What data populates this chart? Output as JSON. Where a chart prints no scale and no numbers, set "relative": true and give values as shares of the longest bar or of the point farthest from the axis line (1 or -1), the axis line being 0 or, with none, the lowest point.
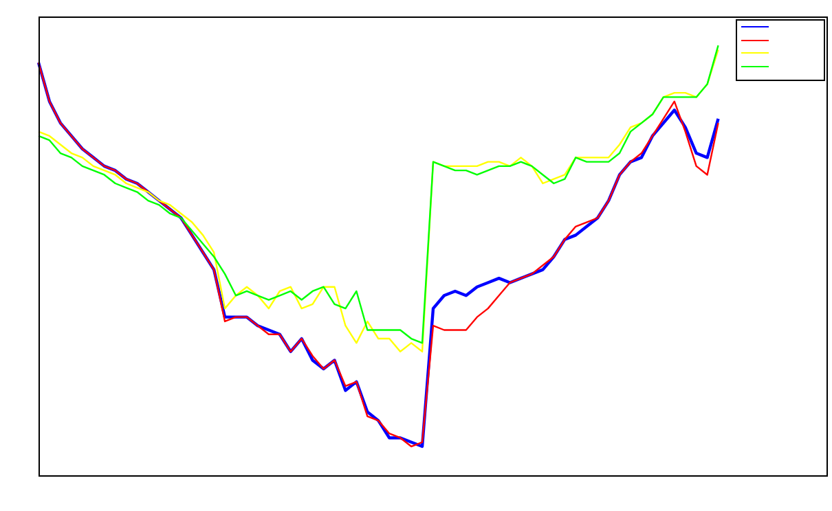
{
  "chart_data": {
    "type": "line",
    "relative": true,
    "marker": "none",
    "line_style": "solid",
    "categories": [
      null,
      null,
      null,
      null,
      null,
      null,
      null,
      null,
      null,
      null,
      null,
      null,
      null,
      null,
      null,
      null,
      null,
      null,
      null,
      null,
      null,
      null,
      null,
      null,
      null,
      null,
      null,
      null,
      null,
      null,
      null,
      null,
      null,
      null,
      null,
      null,
      null,
      null,
      null,
      null,
      null,
      null,
      null,
      null,
      null,
      null,
      null,
      null,
      null,
      null,
      null,
      null,
      null,
      null,
      null,
      null,
      null,
      null,
      null,
      null,
      null,
      null,
      null,
      null,
      null,
      null,
      null,
      null,
      null,
      null,
      null,
      null,
      null
    ],
    "series": [
      {
        "color": "#0000ff",
        "values": [
          0.96,
          0.87,
          0.82,
          0.79,
          0.76,
          0.74,
          0.72,
          0.71,
          0.69,
          0.68,
          0.66,
          0.64,
          0.62,
          0.6,
          0.56,
          0.52,
          0.48,
          0.37,
          0.37,
          0.37,
          0.35,
          0.34,
          0.33,
          0.29,
          0.32,
          0.27,
          0.25,
          0.27,
          0.2,
          0.22,
          0.15,
          0.13,
          0.09,
          0.09,
          0.08,
          0.07,
          0.39,
          0.42,
          0.43,
          0.42,
          0.44,
          0.45,
          0.46,
          0.45,
          0.46,
          0.47,
          0.48,
          0.51,
          0.55,
          0.56,
          0.58,
          0.6,
          0.64,
          0.7,
          0.73,
          0.74,
          0.79,
          0.82,
          0.85,
          0.81,
          0.75,
          0.74,
          0.83,
          null,
          null,
          null,
          null,
          null,
          null,
          null,
          null,
          null,
          null
        ]
      },
      {
        "color": "#ff0000",
        "values": [
          0.96,
          0.87,
          0.82,
          0.79,
          0.76,
          0.74,
          0.72,
          0.71,
          0.69,
          0.68,
          0.66,
          0.64,
          0.62,
          0.6,
          0.56,
          0.52,
          0.48,
          0.36,
          0.37,
          0.37,
          0.35,
          0.33,
          0.33,
          0.29,
          0.32,
          0.28,
          0.25,
          0.27,
          0.21,
          0.22,
          0.14,
          0.13,
          0.1,
          0.09,
          0.07,
          0.08,
          0.35,
          0.34,
          0.34,
          0.34,
          0.37,
          0.39,
          0.42,
          0.45,
          0.46,
          0.47,
          0.49,
          0.51,
          0.55,
          0.58,
          0.59,
          0.6,
          0.64,
          0.7,
          0.73,
          0.75,
          0.79,
          0.83,
          0.87,
          0.8,
          0.72,
          0.7,
          0.82,
          null,
          null,
          null,
          null,
          null,
          null,
          null,
          null,
          null,
          null
        ]
      },
      {
        "color": "#ffff00",
        "values": [
          0.8,
          0.79,
          0.77,
          0.75,
          0.74,
          0.72,
          0.71,
          0.7,
          0.68,
          0.67,
          0.66,
          0.64,
          0.63,
          0.61,
          0.59,
          0.56,
          0.52,
          0.39,
          0.42,
          0.44,
          0.42,
          0.39,
          0.43,
          0.44,
          0.39,
          0.4,
          0.44,
          0.44,
          0.35,
          0.31,
          0.36,
          0.32,
          0.32,
          0.29,
          0.31,
          0.29,
          0.73,
          0.72,
          0.72,
          0.72,
          0.72,
          0.73,
          0.73,
          0.72,
          0.74,
          0.72,
          0.68,
          0.69,
          0.7,
          0.74,
          0.74,
          0.74,
          0.74,
          0.77,
          0.81,
          0.82,
          0.84,
          0.88,
          0.89,
          0.89,
          0.88,
          0.91,
          0.99,
          null,
          null,
          null,
          null,
          null,
          null,
          null,
          null,
          null,
          null
        ]
      },
      {
        "color": "#00ff00",
        "values": [
          0.79,
          0.78,
          0.75,
          0.74,
          0.72,
          0.71,
          0.7,
          0.68,
          0.67,
          0.66,
          0.64,
          0.63,
          0.61,
          0.6,
          0.57,
          0.54,
          0.51,
          0.47,
          0.42,
          0.43,
          0.42,
          0.41,
          0.42,
          0.43,
          0.41,
          0.43,
          0.44,
          0.4,
          0.39,
          0.43,
          0.34,
          0.34,
          0.34,
          0.34,
          0.32,
          0.31,
          0.73,
          0.72,
          0.71,
          0.71,
          0.7,
          0.71,
          0.72,
          0.72,
          0.73,
          0.72,
          0.7,
          0.68,
          0.69,
          0.74,
          0.73,
          0.73,
          0.73,
          0.75,
          0.8,
          0.82,
          0.84,
          0.88,
          0.88,
          0.88,
          0.88,
          0.91,
          1.0,
          null,
          null,
          null,
          null,
          null,
          null,
          null,
          null,
          null,
          null
        ]
      }
    ]
  }
}
